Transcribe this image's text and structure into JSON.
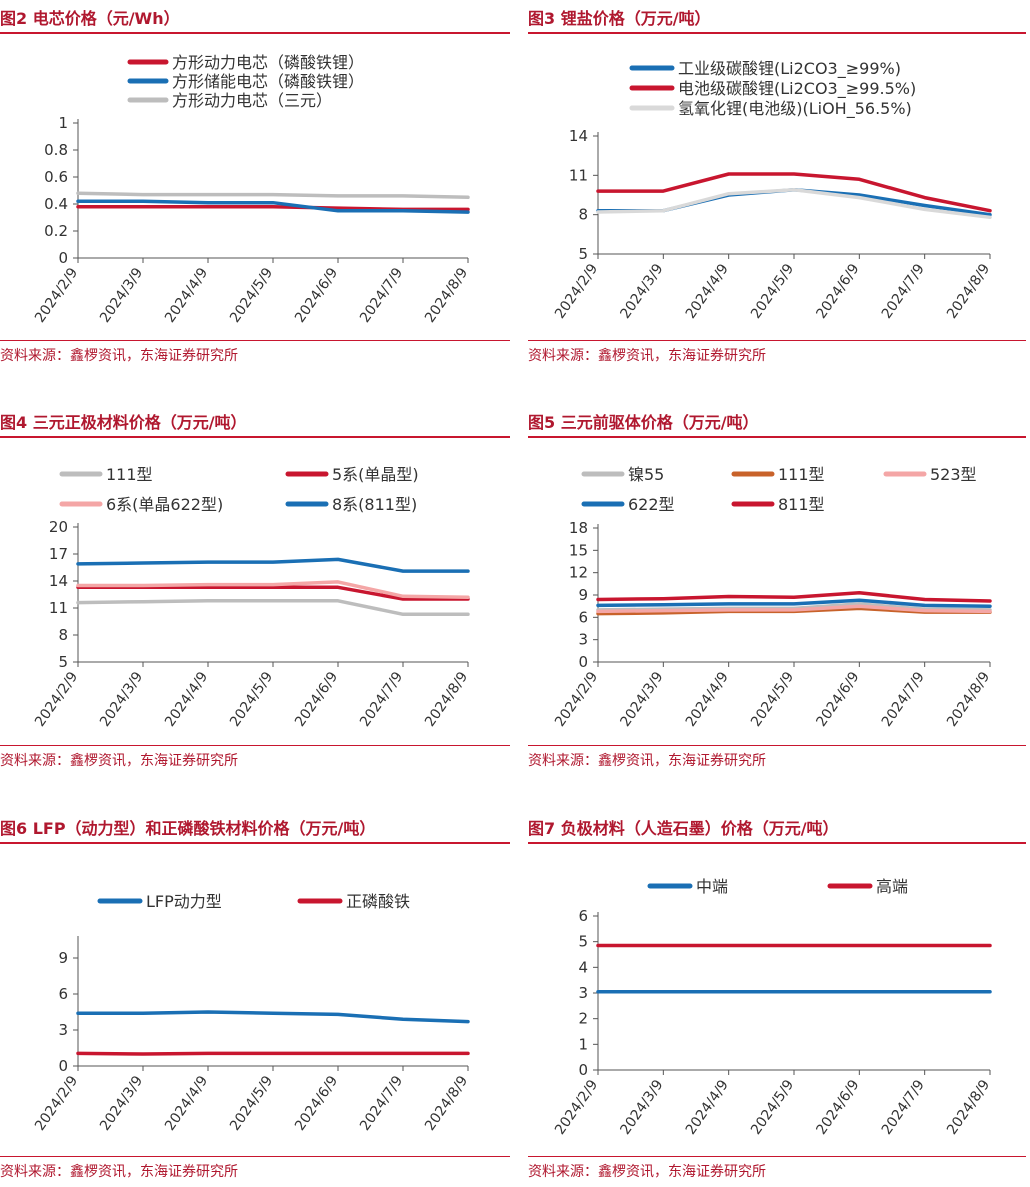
{
  "source_text": "资料来源：鑫椤资讯，东海证券研究所",
  "chart_data": [
    {
      "id": "fig2",
      "type": "line",
      "title": "图2  电芯价格（元/Wh）",
      "x": [
        "2024/2/9",
        "2024/3/9",
        "2024/4/9",
        "2024/5/9",
        "2024/6/9",
        "2024/7/9",
        "2024/8/9"
      ],
      "ylim": [
        0,
        1
      ],
      "yticks": [
        "0",
        "0.2",
        "0.4",
        "0.6",
        "0.8",
        "1"
      ],
      "legend_position": "top",
      "series": [
        {
          "name": "方形动力电芯（磷酸铁锂）",
          "color": "#c8162f",
          "values": [
            0.38,
            0.38,
            0.38,
            0.38,
            0.37,
            0.36,
            0.36
          ]
        },
        {
          "name": "方形储能电芯（磷酸铁锂）",
          "color": "#1a6fb4",
          "values": [
            0.42,
            0.42,
            0.41,
            0.41,
            0.35,
            0.35,
            0.34
          ]
        },
        {
          "name": "方形动力电芯（三元）",
          "color": "#bdbdbd",
          "values": [
            0.48,
            0.47,
            0.47,
            0.47,
            0.46,
            0.46,
            0.45
          ]
        }
      ]
    },
    {
      "id": "fig3",
      "type": "line",
      "title": "图3  锂盐价格（万元/吨）",
      "x": [
        "2024/2/9",
        "2024/3/9",
        "2024/4/9",
        "2024/5/9",
        "2024/6/9",
        "2024/7/9",
        "2024/8/9"
      ],
      "ylim": [
        5,
        14
      ],
      "yticks": [
        "5",
        "8",
        "11",
        "14"
      ],
      "legend_position": "top",
      "series": [
        {
          "name": "工业级碳酸锂(Li2CO3_≥99%)",
          "color": "#1a6fb4",
          "values": [
            8.3,
            8.3,
            9.5,
            9.9,
            9.5,
            8.7,
            8.0
          ]
        },
        {
          "name": "电池级碳酸锂(Li2CO3_≥99.5%)",
          "color": "#c8162f",
          "values": [
            9.8,
            9.8,
            11.1,
            11.1,
            10.7,
            9.3,
            8.3
          ]
        },
        {
          "name": "氢氧化锂(电池级)(LiOH_56.5%)",
          "color": "#d9d9d9",
          "values": [
            8.2,
            8.3,
            9.6,
            9.9,
            9.3,
            8.4,
            7.8
          ]
        }
      ]
    },
    {
      "id": "fig4",
      "type": "line",
      "title": "图4  三元正极材料价格（万元/吨）",
      "x": [
        "2024/2/9",
        "2024/3/9",
        "2024/4/9",
        "2024/5/9",
        "2024/6/9",
        "2024/7/9",
        "2024/8/9"
      ],
      "ylim": [
        5,
        20
      ],
      "yticks": [
        "5",
        "8",
        "11",
        "14",
        "17",
        "20"
      ],
      "legend_position": "top",
      "series": [
        {
          "name": "111型",
          "color": "#bdbdbd",
          "values": [
            11.6,
            11.7,
            11.8,
            11.8,
            11.8,
            10.3,
            10.3
          ]
        },
        {
          "name": "5系(单晶型)",
          "color": "#c8162f",
          "values": [
            13.3,
            13.3,
            13.3,
            13.3,
            13.3,
            12.0,
            12.0
          ]
        },
        {
          "name": "6系(单晶622型)",
          "color": "#f4a6a6",
          "values": [
            13.5,
            13.5,
            13.6,
            13.6,
            13.9,
            12.3,
            12.2
          ]
        },
        {
          "name": "8系(811型)",
          "color": "#1a6fb4",
          "values": [
            15.9,
            16.0,
            16.1,
            16.1,
            16.4,
            15.1,
            15.1
          ]
        }
      ]
    },
    {
      "id": "fig5",
      "type": "line",
      "title": "图5  三元前驱体价格（万元/吨）",
      "x": [
        "2024/2/9",
        "2024/3/9",
        "2024/4/9",
        "2024/5/9",
        "2024/6/9",
        "2024/7/9",
        "2024/8/9"
      ],
      "ylim": [
        0,
        18
      ],
      "yticks": [
        "0",
        "3",
        "6",
        "9",
        "12",
        "15",
        "18"
      ],
      "legend_position": "top",
      "series": [
        {
          "name": "镍55",
          "color": "#bdbdbd",
          "values": [
            7.0,
            7.1,
            7.2,
            7.2,
            7.8,
            7.1,
            7.0
          ]
        },
        {
          "name": "111型",
          "color": "#c8622a",
          "values": [
            6.5,
            6.6,
            6.8,
            6.8,
            7.2,
            6.7,
            6.7
          ]
        },
        {
          "name": "523型",
          "color": "#f4a6a6",
          "values": [
            6.8,
            6.9,
            7.0,
            7.0,
            7.5,
            6.9,
            6.8
          ]
        },
        {
          "name": "622型",
          "color": "#1a6fb4",
          "values": [
            7.6,
            7.7,
            7.8,
            7.8,
            8.3,
            7.6,
            7.5
          ]
        },
        {
          "name": "811型",
          "color": "#c8162f",
          "values": [
            8.4,
            8.5,
            8.8,
            8.7,
            9.3,
            8.4,
            8.2
          ]
        }
      ]
    },
    {
      "id": "fig6",
      "type": "line",
      "title": "图6  LFP（动力型）和正磷酸铁材料价格（万元/吨）",
      "x": [
        "2024/2/9",
        "2024/3/9",
        "2024/4/9",
        "2024/5/9",
        "2024/6/9",
        "2024/7/9",
        "2024/8/9"
      ],
      "ylim": [
        0,
        10.5
      ],
      "yticks": [
        "0",
        "3",
        "6",
        "9"
      ],
      "legend_position": "top",
      "series": [
        {
          "name": "LFP动力型",
          "color": "#1a6fb4",
          "values": [
            4.4,
            4.4,
            4.5,
            4.4,
            4.3,
            3.9,
            3.7
          ]
        },
        {
          "name": "正磷酸铁",
          "color": "#c8162f",
          "values": [
            1.05,
            1.0,
            1.05,
            1.05,
            1.05,
            1.05,
            1.05
          ]
        }
      ]
    },
    {
      "id": "fig7",
      "type": "line",
      "title": "图7  负极材料（人造石墨）价格（万元/吨）",
      "x": [
        "2024/2/9",
        "2024/3/9",
        "2024/4/9",
        "2024/5/9",
        "2024/6/9",
        "2024/7/9",
        "2024/8/9"
      ],
      "ylim": [
        0,
        6
      ],
      "yticks": [
        "0",
        "1",
        "2",
        "3",
        "4",
        "5",
        "6"
      ],
      "legend_position": "top",
      "series": [
        {
          "name": "中端",
          "color": "#1a6fb4",
          "values": [
            3.05,
            3.05,
            3.05,
            3.05,
            3.05,
            3.05,
            3.05
          ]
        },
        {
          "name": "高端",
          "color": "#c8162f",
          "values": [
            4.85,
            4.85,
            4.85,
            4.85,
            4.85,
            4.85,
            4.85
          ]
        }
      ]
    }
  ]
}
